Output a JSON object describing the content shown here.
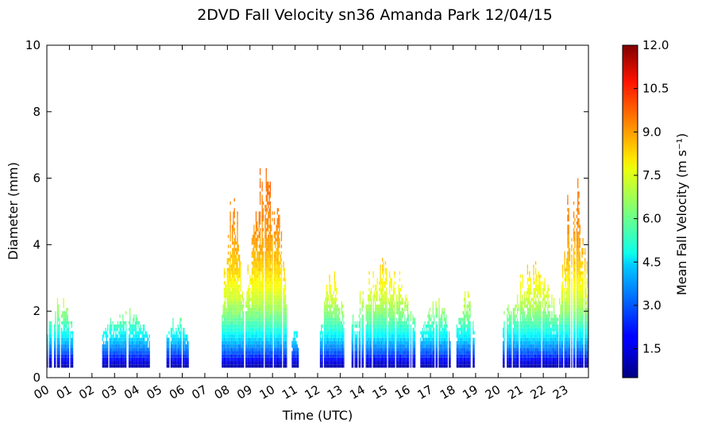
{
  "chart_data": {
    "type": "heatmap",
    "title": "2DVD Fall Velocity sn36 Amanda Park 12/04/15",
    "xlabel": "Time (UTC)",
    "ylabel": "Diameter (mm)",
    "xlim": [
      0,
      24
    ],
    "ylim": [
      0,
      10
    ],
    "x_ticks": [
      "00",
      "01",
      "02",
      "03",
      "04",
      "05",
      "06",
      "07",
      "08",
      "09",
      "10",
      "11",
      "12",
      "13",
      "14",
      "15",
      "16",
      "17",
      "18",
      "19",
      "20",
      "21",
      "22",
      "23"
    ],
    "y_ticks": [
      "0",
      "2",
      "4",
      "6",
      "8",
      "10"
    ],
    "colorbar": {
      "label": "Mean Fall Velocity (m s⁻¹)",
      "range": [
        0.5,
        12.0
      ],
      "ticks": [
        "1.5",
        "3.0",
        "4.5",
        "6.0",
        "7.5",
        "9.0",
        "10.5",
        "12.0"
      ],
      "colormap": "jet"
    },
    "grid": false,
    "precip_episodes_hours": [
      {
        "start": 0.0,
        "end": 1.15,
        "max_diameter_mm": 2.6
      },
      {
        "start": 2.45,
        "end": 4.55,
        "max_diameter_mm": 2.1
      },
      {
        "start": 5.3,
        "end": 6.25,
        "max_diameter_mm": 1.9
      },
      {
        "start": 7.75,
        "end": 8.7,
        "max_diameter_mm": 5.7
      },
      {
        "start": 8.8,
        "end": 10.6,
        "max_diameter_mm": 6.7
      },
      {
        "start": 10.85,
        "end": 11.15,
        "max_diameter_mm": 1.5
      },
      {
        "start": 12.1,
        "end": 13.2,
        "max_diameter_mm": 3.3
      },
      {
        "start": 13.5,
        "end": 16.3,
        "max_diameter_mm": 3.7
      },
      {
        "start": 16.55,
        "end": 17.9,
        "max_diameter_mm": 2.5
      },
      {
        "start": 18.15,
        "end": 18.95,
        "max_diameter_mm": 2.7
      },
      {
        "start": 20.2,
        "end": 22.7,
        "max_diameter_mm": 3.5
      },
      {
        "start": 22.7,
        "end": 24.0,
        "max_diameter_mm": 6.5
      }
    ]
  }
}
